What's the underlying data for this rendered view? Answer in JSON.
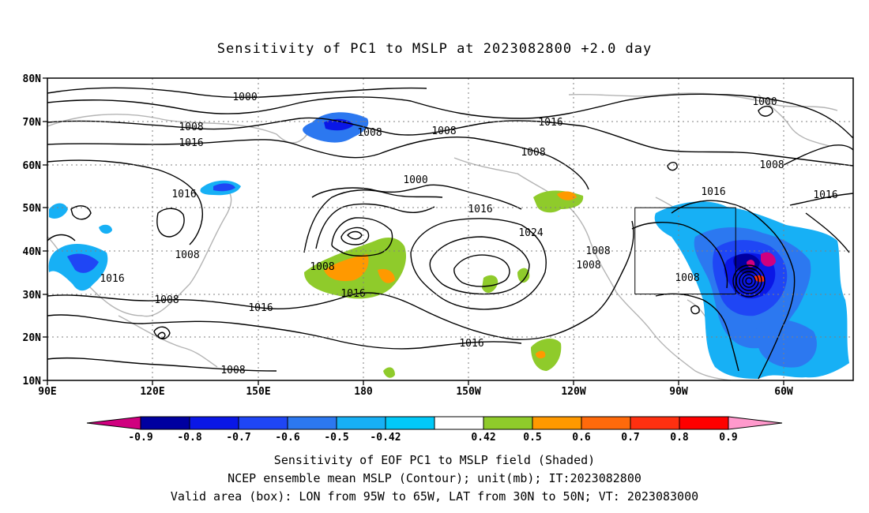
{
  "title": "Sensitivity of PC1 to MSLP at 2023082800 +2.0 day",
  "lon_ticks": [
    "90E",
    "120E",
    "150E",
    "180",
    "150W",
    "120W",
    "90W",
    "60W"
  ],
  "lat_ticks": [
    "80N",
    "70N",
    "60N",
    "50N",
    "40N",
    "30N",
    "20N",
    "10N"
  ],
  "colorbar": {
    "labels": [
      "-0.9",
      "-0.8",
      "-0.7",
      "-0.6",
      "-0.5",
      "-0.42",
      "0.42",
      "0.5",
      "0.6",
      "0.7",
      "0.8",
      "0.9"
    ],
    "colors": [
      "#d0007f",
      "#0000a0",
      "#0a17e6",
      "#1f46f5",
      "#2c78f0",
      "#17b0f5",
      "#02c9f8",
      "#ffffff",
      "#8fcb2b",
      "#ff9900",
      "#ff6a0b",
      "#ff3010",
      "#ff0000",
      "#ff99cc"
    ]
  },
  "contour_labels": [
    "1000",
    "1000",
    "1000",
    "1008",
    "1008",
    "1008",
    "1008",
    "1008",
    "1008",
    "1008",
    "1008",
    "1008",
    "1008",
    "1008",
    "1008",
    "1008",
    "1016",
    "1016",
    "1016",
    "1016",
    "1016",
    "1016",
    "1016",
    "1016",
    "1024"
  ],
  "valid_box": {
    "lon": [
      -95,
      -65
    ],
    "lat": [
      30,
      50
    ]
  },
  "captions": [
    "Sensitivity of EOF PC1 to MSLP field (Shaded)",
    "NCEP ensemble mean MSLP (Contour); unit(mb); IT:2023082800",
    "Valid area (box): LON from 95W to 65W, LAT from 30N to 50N; VT: 2023083000"
  ]
}
